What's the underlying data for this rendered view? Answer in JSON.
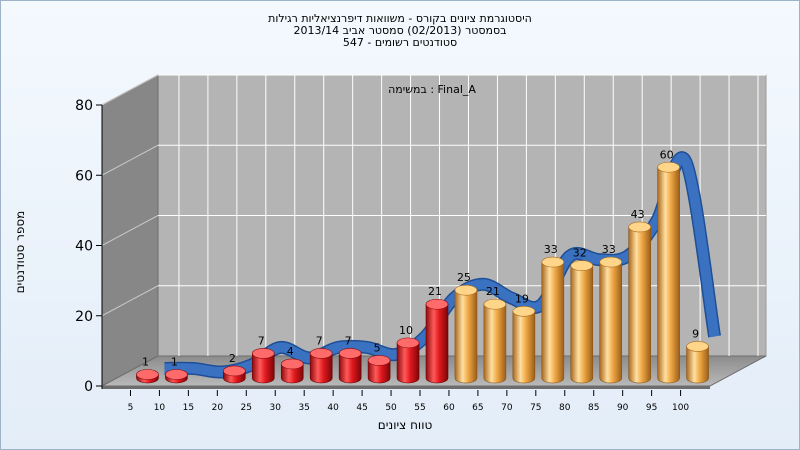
{
  "chart_data": {
    "type": "bar",
    "title": "היסטוגרמת ציונים בקורס - משוואות דיפרנציאליות רגילות",
    "subtitle_lines": [
      "בסמסטר (02/2013) סמסטר אביב 2013/14",
      "547 - סטודנטים רשומים"
    ],
    "annotation": "במשימה : Final_A",
    "xlabel": "טווח ציונים",
    "ylabel": "מספר סטודנטים",
    "ylim": [
      0,
      80
    ],
    "yticks": [
      0,
      20,
      40,
      60,
      80
    ],
    "categories": [
      "5",
      "10",
      "15",
      "20",
      "25",
      "30",
      "35",
      "40",
      "45",
      "50",
      "55",
      "60",
      "65",
      "70",
      "75",
      "80",
      "85",
      "90",
      "95",
      "100"
    ],
    "values": [
      1,
      1,
      0,
      2,
      7,
      4,
      7,
      7,
      5,
      10,
      21,
      25,
      21,
      19,
      33,
      32,
      33,
      43,
      60,
      9
    ],
    "trend_line": true,
    "grid": true,
    "colors": {
      "fail_bar": "#e0191e",
      "pass_bar": "#efa845",
      "trend": "#3a71c0",
      "wall_back": "#b4b4b4",
      "wall_side": "#878787"
    }
  }
}
